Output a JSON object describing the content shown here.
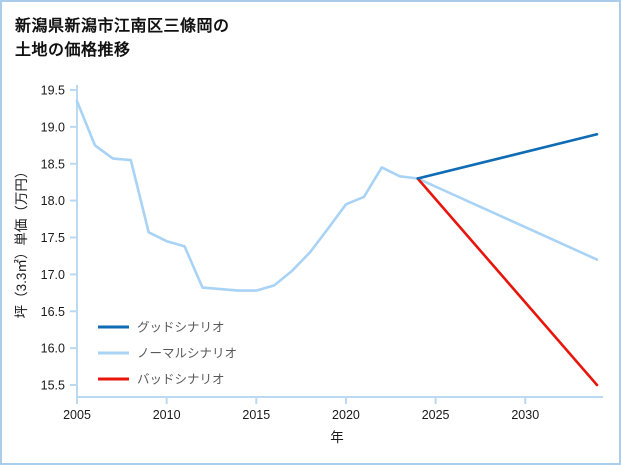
{
  "page": {
    "title_line1": "新潟県新潟市江南区三條岡の",
    "title_line2": "土地の価格推移"
  },
  "chart_data": {
    "type": "line",
    "title": "新潟県新潟市江南区三條岡の土地の価格推移",
    "xlabel": "年",
    "ylabel": "坪（3.3㎡）単価（万円）",
    "xlim": [
      2005,
      2034
    ],
    "ylim": [
      15.5,
      19.5
    ],
    "x_ticks": [
      2005,
      2010,
      2015,
      2020,
      2025,
      2030
    ],
    "y_ticks": [
      15.5,
      16.0,
      16.5,
      17.0,
      17.5,
      18.0,
      18.5,
      19.0,
      19.5
    ],
    "grid": false,
    "legend_position": "lower-left",
    "style": {
      "axis_color": "#bcd9f2",
      "text_color": "#1a1a1a",
      "legend_text_color": "#595959",
      "border_color": "#a9cdeb",
      "background": "#ffffff"
    },
    "series": [
      {
        "key": "good-scenario",
        "name": "グッドシナリオ",
        "color": "#0f6cb4",
        "z": 3,
        "x": [
          2024,
          2034
        ],
        "y": [
          18.3,
          18.9
        ]
      },
      {
        "key": "normal-scenario",
        "name": "ノーマルシナリオ",
        "color": "#a9d3f5",
        "z": 1,
        "x": [
          2005,
          2006,
          2007,
          2008,
          2009,
          2010,
          2011,
          2012,
          2013,
          2014,
          2015,
          2016,
          2017,
          2018,
          2019,
          2020,
          2021,
          2022,
          2023,
          2024,
          2034
        ],
        "y": [
          19.35,
          18.75,
          18.57,
          18.55,
          17.57,
          17.45,
          17.38,
          16.82,
          16.8,
          16.78,
          16.78,
          16.85,
          17.05,
          17.3,
          17.62,
          17.95,
          18.05,
          18.45,
          18.33,
          18.3,
          17.2
        ]
      },
      {
        "key": "bad-scenario",
        "name": "バッドシナリオ",
        "color": "#e8150b",
        "z": 2,
        "x": [
          2024,
          2034
        ],
        "y": [
          18.3,
          15.5
        ]
      }
    ]
  }
}
